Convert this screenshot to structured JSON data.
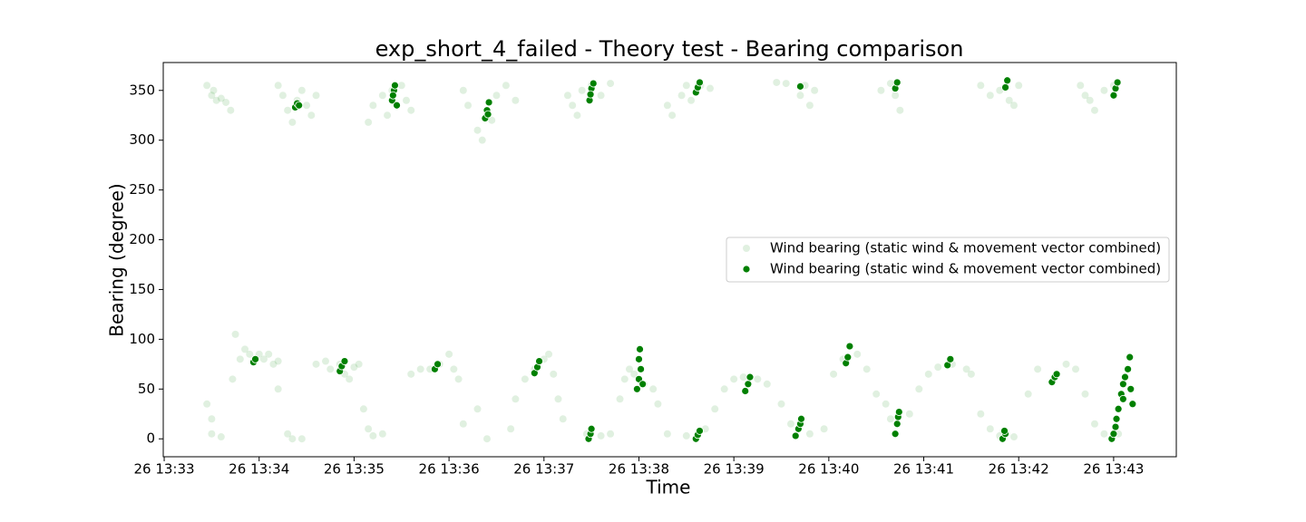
{
  "chart_data": {
    "type": "scatter",
    "title": "exp_short_4_failed - Theory test - Bearing comparison",
    "x_label": "Time",
    "y_label": "Bearing (degree)",
    "xlim": [
      -0.01,
      10.66
    ],
    "ylim": [
      -18,
      378
    ],
    "xticks": [
      {
        "value": 0,
        "label": "26 13:33"
      },
      {
        "value": 1,
        "label": "26 13:34"
      },
      {
        "value": 2,
        "label": "26 13:35"
      },
      {
        "value": 3,
        "label": "26 13:36"
      },
      {
        "value": 4,
        "label": "26 13:37"
      },
      {
        "value": 5,
        "label": "26 13:38"
      },
      {
        "value": 6,
        "label": "26 13:39"
      },
      {
        "value": 7,
        "label": "26 13:40"
      },
      {
        "value": 8,
        "label": "26 13:41"
      },
      {
        "value": 9,
        "label": "26 13:42"
      },
      {
        "value": 10,
        "label": "26 13:43"
      }
    ],
    "yticks": [
      0,
      50,
      100,
      150,
      200,
      250,
      300,
      350
    ],
    "legend": "center right",
    "series": [
      {
        "name": "Wind bearing (static wind & movement vector combined)",
        "color": "#008000",
        "alpha": 0.12,
        "edge": "none",
        "x": [
          0.45,
          0.5,
          0.55,
          0.6,
          0.65,
          0.7,
          0.52,
          1.2,
          1.25,
          1.3,
          1.35,
          1.4,
          1.5,
          1.55,
          1.6,
          1.45,
          2.15,
          2.2,
          2.3,
          2.4,
          2.5,
          2.55,
          2.6,
          2.35,
          3.15,
          3.2,
          3.3,
          3.35,
          3.45,
          3.5,
          3.6,
          3.7,
          4.25,
          4.3,
          4.4,
          4.5,
          4.6,
          4.7,
          4.35,
          5.3,
          5.35,
          5.45,
          5.55,
          5.65,
          5.75,
          5.5,
          6.45,
          6.55,
          6.7,
          6.8,
          6.85,
          6.75,
          7.55,
          7.7,
          7.75,
          7.65,
          8.6,
          8.7,
          8.8,
          8.9,
          9.0,
          8.95,
          9.65,
          9.75,
          9.8,
          9.9,
          10.0,
          9.7,
          0.45,
          0.5,
          0.5,
          0.6,
          0.72,
          0.75,
          0.8,
          0.85,
          0.9,
          1.0,
          1.05,
          1.1,
          1.2,
          1.15,
          1.2,
          1.3,
          1.35,
          1.45,
          1.6,
          1.7,
          1.75,
          1.85,
          1.9,
          1.95,
          2.0,
          2.05,
          2.1,
          2.15,
          2.2,
          2.3,
          2.6,
          2.7,
          2.8,
          2.9,
          3.0,
          3.05,
          3.1,
          3.15,
          3.3,
          3.4,
          3.65,
          3.7,
          3.8,
          3.9,
          4.0,
          4.05,
          4.1,
          4.15,
          4.2,
          4.45,
          4.6,
          4.7,
          4.8,
          4.85,
          4.9,
          4.95,
          5.05,
          5.15,
          5.2,
          5.3,
          5.5,
          5.7,
          5.8,
          5.9,
          6.0,
          6.1,
          6.25,
          6.35,
          6.5,
          6.6,
          6.8,
          6.95,
          7.05,
          7.15,
          7.3,
          7.4,
          7.5,
          7.6,
          7.65,
          7.85,
          7.95,
          8.05,
          8.15,
          8.3,
          8.45,
          8.5,
          8.6,
          8.7,
          8.8,
          8.95,
          9.1,
          9.2,
          9.4,
          9.5,
          9.6,
          9.7,
          9.8,
          9.9,
          10.05
        ],
        "values": [
          355,
          345,
          340,
          342,
          338,
          330,
          350,
          355,
          345,
          330,
          318,
          340,
          335,
          325,
          345,
          350,
          318,
          335,
          345,
          350,
          355,
          340,
          330,
          325,
          350,
          335,
          310,
          300,
          320,
          345,
          355,
          340,
          345,
          335,
          350,
          355,
          345,
          357,
          325,
          335,
          325,
          345,
          340,
          355,
          352,
          355,
          358,
          357,
          345,
          335,
          350,
          355,
          350,
          345,
          330,
          357,
          355,
          345,
          350,
          340,
          355,
          335,
          355,
          340,
          330,
          350,
          355,
          345,
          35,
          20,
          5,
          2,
          60,
          105,
          80,
          90,
          85,
          85,
          80,
          85,
          78,
          75,
          50,
          5,
          0,
          0,
          75,
          78,
          70,
          75,
          65,
          60,
          72,
          75,
          30,
          10,
          3,
          5,
          65,
          70,
          70,
          75,
          85,
          70,
          60,
          15,
          30,
          0,
          10,
          40,
          60,
          70,
          80,
          85,
          65,
          40,
          20,
          5,
          3,
          5,
          40,
          60,
          70,
          65,
          55,
          50,
          35,
          5,
          3,
          10,
          30,
          50,
          60,
          62,
          60,
          55,
          35,
          15,
          5,
          10,
          65,
          80,
          85,
          70,
          45,
          35,
          20,
          25,
          50,
          65,
          72,
          75,
          70,
          65,
          25,
          10,
          3,
          2,
          45,
          70,
          65,
          75,
          70,
          45,
          15,
          5,
          5
        ]
      },
      {
        "name": "Wind bearing (static wind & movement vector combined)",
        "color": "#008000",
        "alpha": 1,
        "edge": "#ffffff",
        "x": [
          1.38,
          1.4,
          1.42,
          2.4,
          2.42,
          2.43,
          2.45,
          2.41,
          3.38,
          3.4,
          3.42,
          3.41,
          4.48,
          4.5,
          4.52,
          4.49,
          5.6,
          5.62,
          5.64,
          6.7,
          7.7,
          7.72,
          8.86,
          8.88,
          10.0,
          10.02,
          10.04,
          0.94,
          0.96,
          1.85,
          1.87,
          1.9,
          2.85,
          2.88,
          3.9,
          3.93,
          3.95,
          4.47,
          4.49,
          4.5,
          4.98,
          5.0,
          5.02,
          5.0,
          5.01,
          5.04,
          5.6,
          5.62,
          5.64,
          6.12,
          6.15,
          6.17,
          6.65,
          6.68,
          6.7,
          6.71,
          7.18,
          7.2,
          7.22,
          7.7,
          7.72,
          7.73,
          7.74,
          8.25,
          8.28,
          8.83,
          8.86,
          8.85,
          9.35,
          9.38,
          9.4,
          9.98,
          10.0,
          10.02,
          10.03,
          10.05,
          10.08,
          10.1,
          10.12,
          10.15,
          10.17,
          10.2,
          10.18,
          10.1
        ],
        "values": [
          333,
          337,
          335,
          340,
          350,
          355,
          335,
          345,
          322,
          330,
          338,
          326,
          340,
          352,
          357,
          346,
          348,
          353,
          358,
          354,
          352,
          358,
          353,
          360,
          345,
          352,
          358,
          77,
          80,
          68,
          73,
          78,
          70,
          75,
          66,
          72,
          78,
          0,
          5,
          10,
          50,
          60,
          70,
          80,
          90,
          55,
          0,
          4,
          8,
          48,
          55,
          62,
          3,
          10,
          15,
          20,
          76,
          82,
          93,
          5,
          15,
          22,
          27,
          74,
          80,
          0,
          5,
          8,
          57,
          62,
          65,
          0,
          5,
          12,
          20,
          30,
          45,
          55,
          62,
          70,
          82,
          35,
          50,
          40
        ]
      }
    ]
  }
}
